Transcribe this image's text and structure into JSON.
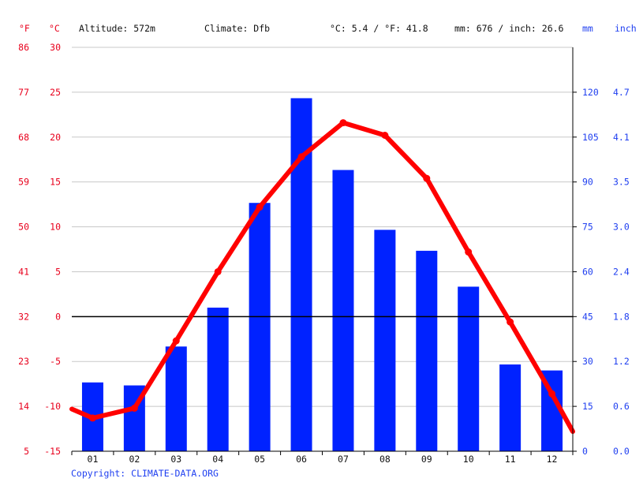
{
  "header": {
    "unit_f": "°F",
    "unit_c": "°C",
    "altitude": "Altitude: 572m",
    "climate": "Climate: Dfb",
    "temp_avg": "°C: 5.4 / °F: 41.8",
    "precip_total": "mm: 676 / inch: 26.6",
    "unit_mm": "mm",
    "unit_inch": "inch"
  },
  "footer": {
    "copyright": "Copyright: CLIMATE-DATA.ORG"
  },
  "colors": {
    "temperature_line": "#ff0000",
    "precipitation_bar": "#0022ff",
    "axis_red": "#e8001c",
    "axis_blue": "#1f3ff0",
    "grid": "#c8c8c8",
    "zero_line": "#000000"
  },
  "chart_data": {
    "type": "bar",
    "categories": [
      "01",
      "02",
      "03",
      "04",
      "05",
      "06",
      "07",
      "08",
      "09",
      "10",
      "11",
      "12"
    ],
    "series": [
      {
        "type": "bar",
        "axis": "mm",
        "values": [
          23,
          22,
          35,
          48,
          83,
          118,
          94,
          74,
          67,
          55,
          29,
          27
        ]
      },
      {
        "type": "line",
        "axis": "celsius",
        "values": [
          -11.3,
          -10.2,
          -2.7,
          5.0,
          12.2,
          17.8,
          21.6,
          20.2,
          15.4,
          7.2,
          -0.6,
          -8.6
        ]
      }
    ],
    "line_start": -10.3,
    "line_end": -12.8,
    "axes": {
      "celsius": {
        "ylim": [
          -15,
          30
        ],
        "ticks": [
          "30",
          "25",
          "20",
          "15",
          "10",
          "5",
          "0",
          "-5",
          "-10",
          "-15"
        ]
      },
      "fahrenheit": {
        "ticks": [
          "86",
          "77",
          "68",
          "59",
          "50",
          "41",
          "32",
          "23",
          "14",
          "5"
        ]
      },
      "mm": {
        "ylim": [
          0,
          135
        ],
        "ticks": [
          "120",
          "105",
          "90",
          "75",
          "60",
          "45",
          "30",
          "15",
          "0"
        ]
      },
      "inch": {
        "ticks": [
          "4.7",
          "4.1",
          "3.5",
          "3.0",
          "2.4",
          "1.8",
          "1.2",
          "0.6",
          "0.0"
        ]
      }
    },
    "grid": true,
    "legend": "none"
  }
}
